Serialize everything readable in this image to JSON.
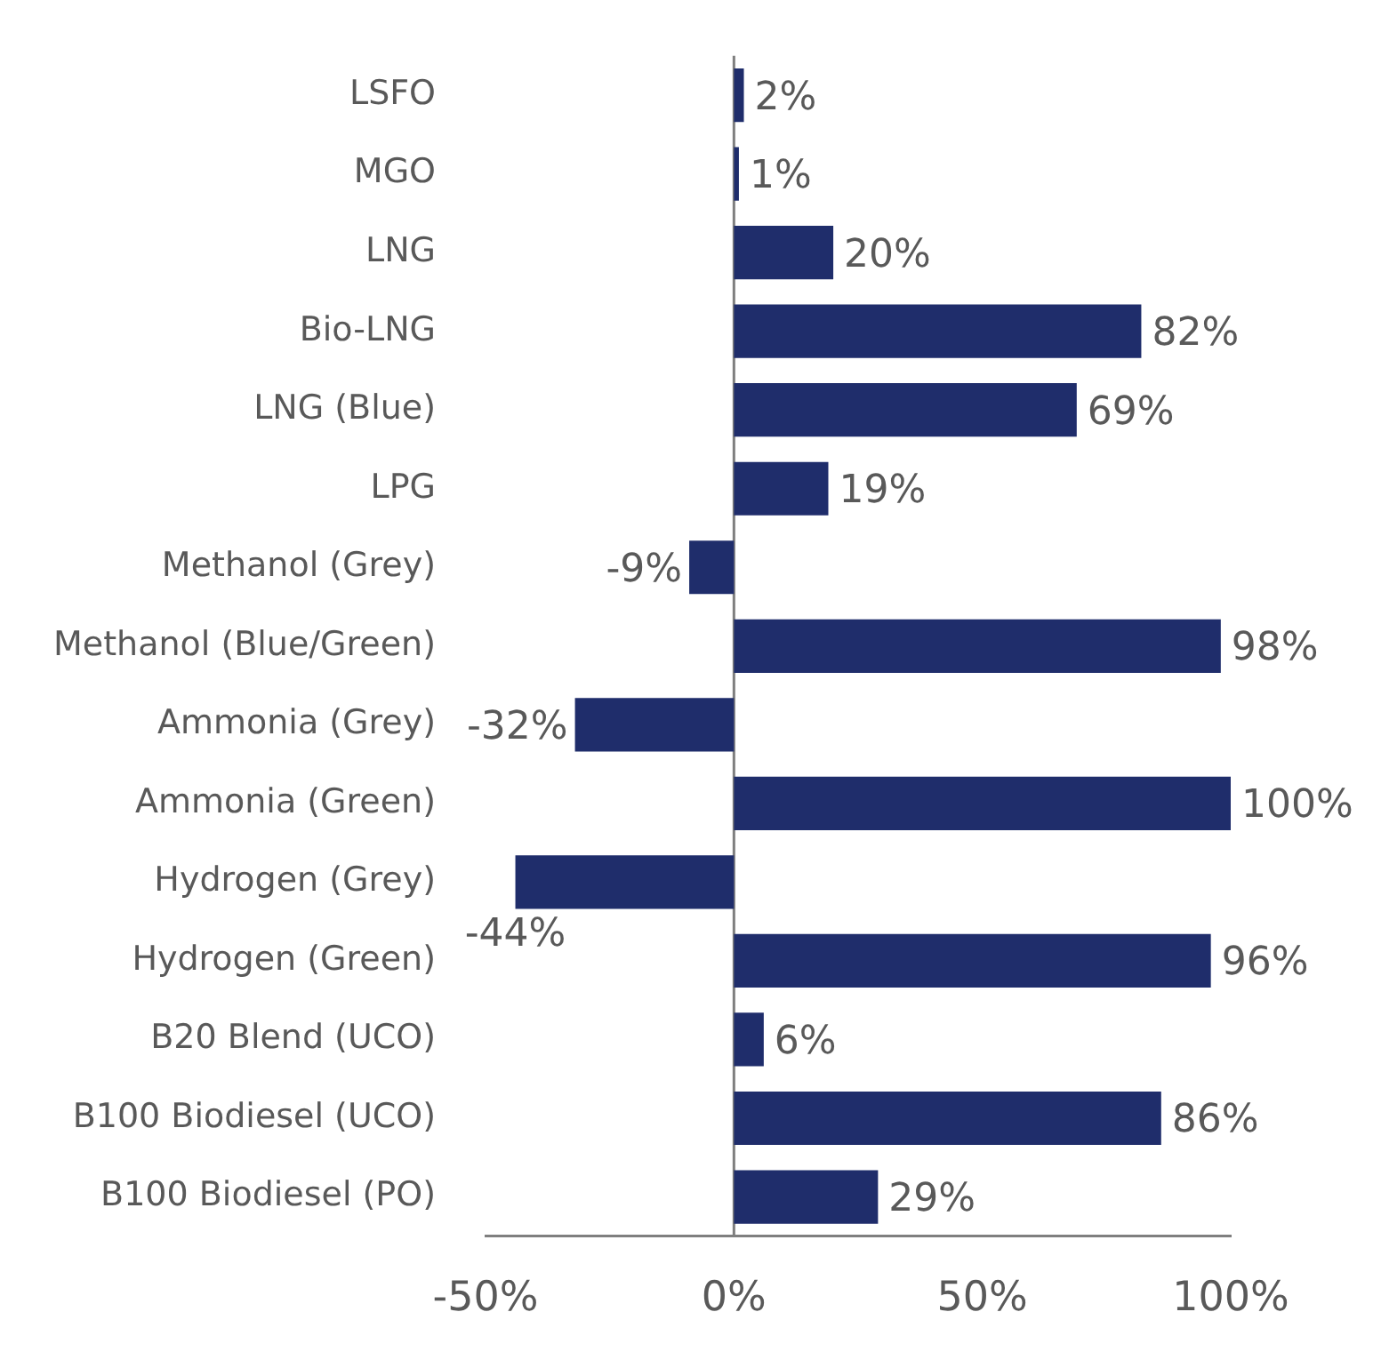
{
  "chart_data": {
    "type": "bar",
    "orientation": "horizontal",
    "categories": [
      "LSFO",
      "MGO",
      "LNG",
      "Bio-LNG",
      "LNG (Blue)",
      "LPG",
      "Methanol (Grey)",
      "Methanol (Blue/Green)",
      "Ammonia (Grey)",
      "Ammonia (Green)",
      "Hydrogen (Grey)",
      "Hydrogen (Green)",
      "B20 Blend (UCO)",
      "B100 Biodiesel (UCO)",
      "B100 Biodiesel (PO)"
    ],
    "values": [
      2,
      1,
      20,
      82,
      69,
      19,
      -9,
      98,
      -32,
      100,
      -44,
      96,
      6,
      86,
      29
    ],
    "value_labels": [
      "2%",
      "1%",
      "20%",
      "82%",
      "69%",
      "19%",
      "-9%",
      "98%",
      "-32%",
      "100%",
      "-44%",
      "96%",
      "6%",
      "86%",
      "29%"
    ],
    "color": "#1f2d6b",
    "xlim": [
      -50,
      100
    ],
    "xticks": [
      {
        "value": -50,
        "label": "-50%"
      },
      {
        "value": 0,
        "label": "0%"
      },
      {
        "value": 50,
        "label": "50%"
      },
      {
        "value": 100,
        "label": "100%"
      }
    ],
    "ref_lines": [
      {
        "axis": "x",
        "value": 0,
        "color": "#7f7f7f"
      }
    ],
    "grid": false,
    "legend": false
  }
}
